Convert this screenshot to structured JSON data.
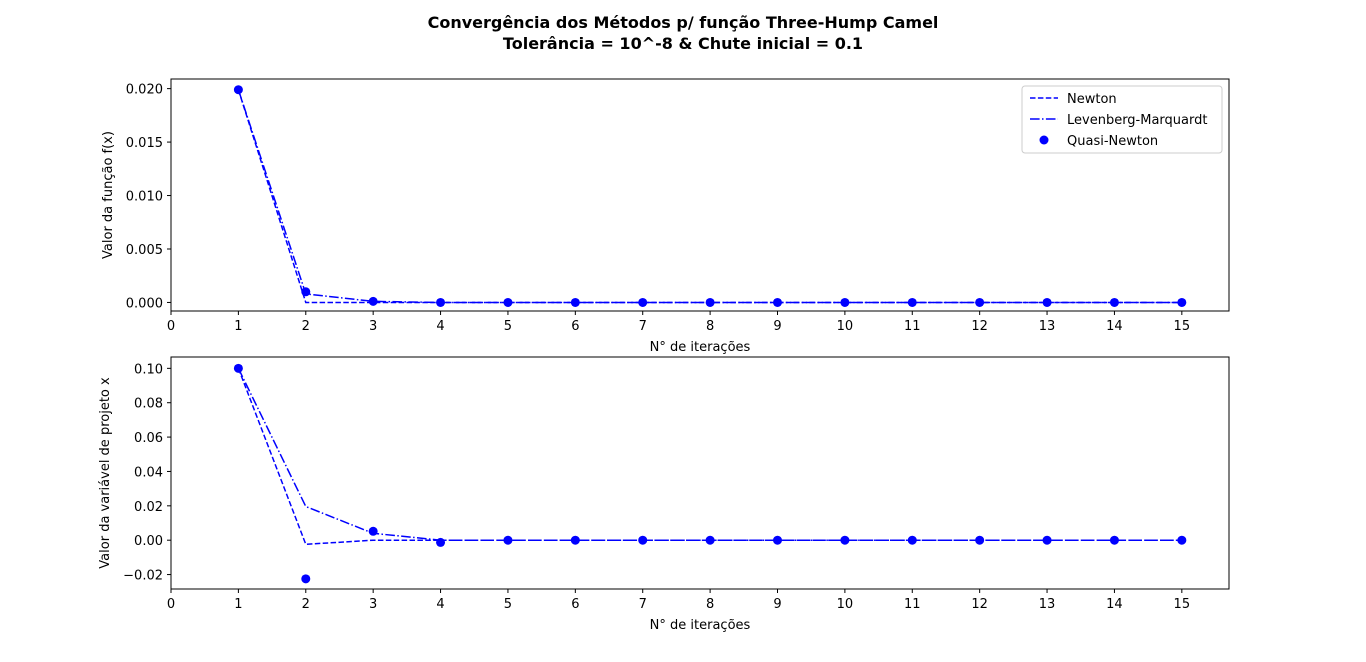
{
  "figure": {
    "title_line1": "Convergência dos Métodos p/ função Three-Hump Camel",
    "title_line2": "Tolerância = 10^-8 & Chute inicial = 0.1"
  },
  "colors": {
    "series": "#0000ff",
    "axes": "#000000",
    "background": "#ffffff"
  },
  "chart_data": [
    {
      "type": "line",
      "xlabel": "N° de iterações",
      "ylabel": "Valor da função f(x)",
      "xlim": [
        0,
        15.7
      ],
      "ylim": [
        -0.0008,
        0.0209
      ],
      "xticks": [
        0,
        1,
        2,
        3,
        4,
        5,
        6,
        7,
        8,
        9,
        10,
        11,
        12,
        13,
        14,
        15
      ],
      "xtick_labels": [
        "0",
        "1",
        "2",
        "3",
        "4",
        "5",
        "6",
        "7",
        "8",
        "9",
        "10",
        "11",
        "12",
        "13",
        "14",
        "15"
      ],
      "yticks": [
        0.0,
        0.005,
        0.01,
        0.015,
        0.02
      ],
      "ytick_labels": [
        "0.000",
        "0.005",
        "0.010",
        "0.015",
        "0.020"
      ],
      "legend": "top-right",
      "legend_entries": [
        "Newton",
        "Levenberg-Marquardt",
        "Quasi-Newton"
      ],
      "series": [
        {
          "name": "Newton",
          "style": "dashed",
          "x": [
            1,
            2,
            3,
            4,
            5,
            6,
            7,
            8,
            9,
            10,
            11,
            12,
            13,
            14,
            15
          ],
          "values": [
            0.0199,
            0.0,
            0.0,
            0.0,
            0.0,
            0.0,
            0.0,
            0.0,
            0.0,
            0.0,
            0.0,
            0.0,
            0.0,
            0.0,
            0.0
          ]
        },
        {
          "name": "Levenberg-Marquardt",
          "style": "dashdot",
          "x": [
            1,
            2,
            3,
            4,
            5,
            6,
            7,
            8,
            9,
            10,
            11,
            12,
            13,
            14,
            15
          ],
          "values": [
            0.0199,
            0.0008,
            0.0001,
            0.0,
            0.0,
            0.0,
            0.0,
            0.0,
            0.0,
            0.0,
            0.0,
            0.0,
            0.0,
            0.0,
            0.0
          ]
        },
        {
          "name": "Quasi-Newton",
          "style": "markers",
          "x": [
            1,
            2,
            3,
            4,
            5,
            6,
            7,
            8,
            9,
            10,
            11,
            12,
            13,
            14,
            15
          ],
          "values": [
            0.0199,
            0.001,
            0.0001,
            0.0,
            0.0,
            0.0,
            0.0,
            0.0,
            0.0,
            0.0,
            0.0,
            0.0,
            0.0,
            0.0,
            0.0
          ]
        }
      ]
    },
    {
      "type": "line",
      "xlabel": "N° de iterações",
      "ylabel": "Valor da variável de projeto x",
      "xlim": [
        0,
        15.7
      ],
      "ylim": [
        -0.0284,
        0.1066
      ],
      "xticks": [
        0,
        1,
        2,
        3,
        4,
        5,
        6,
        7,
        8,
        9,
        10,
        11,
        12,
        13,
        14,
        15
      ],
      "xtick_labels": [
        "0",
        "1",
        "2",
        "3",
        "4",
        "5",
        "6",
        "7",
        "8",
        "9",
        "10",
        "11",
        "12",
        "13",
        "14",
        "15"
      ],
      "yticks": [
        -0.02,
        0.0,
        0.02,
        0.04,
        0.06,
        0.08,
        0.1
      ],
      "ytick_labels": [
        "−0.02",
        "0.00",
        "0.02",
        "0.04",
        "0.06",
        "0.08",
        "0.10"
      ],
      "legend": "none",
      "series": [
        {
          "name": "Newton",
          "style": "dashed",
          "x": [
            1,
            2,
            3,
            4,
            5,
            6,
            7,
            8,
            9,
            10,
            11,
            12,
            13,
            14,
            15
          ],
          "values": [
            0.1,
            -0.0024,
            0.0,
            0.0,
            0.0,
            0.0,
            0.0,
            0.0,
            0.0,
            0.0,
            0.0,
            0.0,
            0.0,
            0.0,
            0.0
          ]
        },
        {
          "name": "Levenberg-Marquardt",
          "style": "dashdot",
          "x": [
            1,
            2,
            3,
            4,
            5,
            6,
            7,
            8,
            9,
            10,
            11,
            12,
            13,
            14,
            15
          ],
          "values": [
            0.1,
            0.0196,
            0.004,
            0.0,
            0.0,
            0.0,
            0.0,
            0.0,
            0.0,
            0.0,
            0.0,
            0.0,
            0.0,
            0.0,
            0.0
          ]
        },
        {
          "name": "Quasi-Newton",
          "style": "markers",
          "x": [
            1,
            2,
            3,
            4,
            5,
            6,
            7,
            8,
            9,
            10,
            11,
            12,
            13,
            14,
            15
          ],
          "values": [
            0.1,
            -0.0225,
            0.0052,
            -0.0013,
            0.0,
            0.0,
            0.0,
            0.0,
            0.0,
            0.0,
            0.0,
            0.0,
            0.0,
            0.0,
            0.0
          ]
        }
      ]
    }
  ]
}
